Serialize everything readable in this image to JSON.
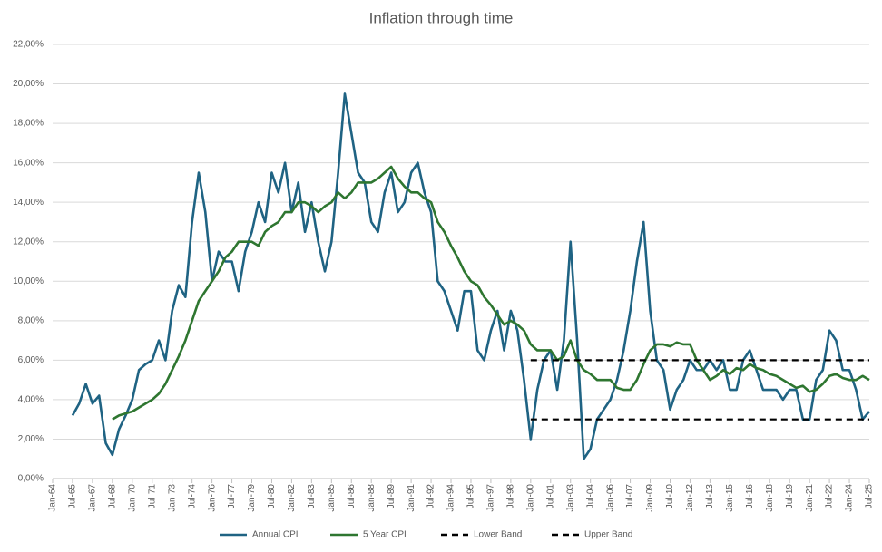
{
  "chart_data": {
    "type": "line",
    "title": "Inflation through time",
    "x": [
      "Jul-65",
      "Jan-66",
      "Jul-66",
      "Jan-67",
      "Jul-67",
      "Jan-68",
      "Jul-68",
      "Jan-69",
      "Jul-69",
      "Jan-70",
      "Jul-70",
      "Jan-71",
      "Jul-71",
      "Jan-72",
      "Jul-72",
      "Jan-73",
      "Jul-73",
      "Jan-74",
      "Jul-74",
      "Jan-75",
      "Jul-75",
      "Jan-76",
      "Jul-76",
      "Jan-77",
      "Jul-77",
      "Jan-78",
      "Jul-78",
      "Jan-79",
      "Jul-79",
      "Jan-80",
      "Jul-80",
      "Jan-81",
      "Jul-81",
      "Jan-82",
      "Jul-82",
      "Jan-83",
      "Jul-83",
      "Jan-84",
      "Jul-84",
      "Jan-85",
      "Jul-85",
      "Jan-86",
      "Jul-86",
      "Jan-87",
      "Jul-87",
      "Jan-88",
      "Jul-88",
      "Jan-89",
      "Jul-89",
      "Jan-90",
      "Jul-90",
      "Jan-91",
      "Jul-91",
      "Jan-92",
      "Jul-92",
      "Jan-93",
      "Jul-93",
      "Jan-94",
      "Jul-94",
      "Jan-95",
      "Jul-95",
      "Jan-96",
      "Jul-96",
      "Jan-97",
      "Jul-97",
      "Jan-98",
      "Jul-98",
      "Jan-99",
      "Jul-99",
      "Jan-00",
      "Jul-00",
      "Jan-01",
      "Jul-01",
      "Jan-02",
      "Jul-02",
      "Jan-03",
      "Jul-03",
      "Jan-04",
      "Jul-04",
      "Jan-05",
      "Jul-05",
      "Jan-06",
      "Jul-06",
      "Jan-07",
      "Jul-07",
      "Jan-08",
      "Jul-08",
      "Jan-09",
      "Jul-09",
      "Jan-10",
      "Jul-10",
      "Jan-11",
      "Jul-11",
      "Jan-12",
      "Jul-12",
      "Jan-13",
      "Jul-13",
      "Jan-14",
      "Jul-14",
      "Jan-15",
      "Jul-15",
      "Jan-16",
      "Jul-16",
      "Jan-17",
      "Jul-17",
      "Jan-18",
      "Jul-18",
      "Jan-19",
      "Jul-19",
      "Jan-20",
      "Jul-20",
      "Jan-21",
      "Jul-21",
      "Jan-22",
      "Jul-22",
      "Jan-23",
      "Jul-23",
      "Jan-24",
      "Jul-24",
      "Jan-25",
      "Jul-25"
    ],
    "series": [
      {
        "name": "Annual CPI",
        "color": "#1f6383",
        "dashed": false,
        "values": [
          3.2,
          3.8,
          4.8,
          3.8,
          4.2,
          1.8,
          1.2,
          2.5,
          3.2,
          4.0,
          5.5,
          5.8,
          6.0,
          7.0,
          6.0,
          8.5,
          9.8,
          9.2,
          13.0,
          15.5,
          13.5,
          10.0,
          11.5,
          11.0,
          11.0,
          9.5,
          11.5,
          12.5,
          14.0,
          13.0,
          15.5,
          14.5,
          16.0,
          13.5,
          15.0,
          12.5,
          14.0,
          12.0,
          10.5,
          12.0,
          15.5,
          19.5,
          17.5,
          15.5,
          15.0,
          13.0,
          12.5,
          14.5,
          15.5,
          13.5,
          14.0,
          15.5,
          16.0,
          14.5,
          13.5,
          10.0,
          9.5,
          8.5,
          7.5,
          9.5,
          9.5,
          6.5,
          6.0,
          7.5,
          8.5,
          6.5,
          8.5,
          7.5,
          5.0,
          2.0,
          4.5,
          6.0,
          6.5,
          4.5,
          7.0,
          12.0,
          7.0,
          1.0,
          1.5,
          3.0,
          3.5,
          4.0,
          5.0,
          6.5,
          8.5,
          11.0,
          13.0,
          8.5,
          6.0,
          5.5,
          3.5,
          4.5,
          5.0,
          6.0,
          5.5,
          5.5,
          6.0,
          5.5,
          6.0,
          4.5,
          4.5,
          6.0,
          6.5,
          5.5,
          4.5,
          4.5,
          4.5,
          4.0,
          4.5,
          4.5,
          3.0,
          3.0,
          5.0,
          5.5,
          7.5,
          7.0,
          5.5,
          5.5,
          4.5,
          3.0,
          3.4
        ]
      },
      {
        "name": "5 Year CPI",
        "color": "#2e7630",
        "dashed": false,
        "values": [
          null,
          null,
          null,
          null,
          null,
          null,
          3.0,
          3.2,
          3.3,
          3.4,
          3.6,
          3.8,
          4.0,
          4.3,
          4.8,
          5.5,
          6.2,
          7.0,
          8.0,
          9.0,
          9.5,
          10.0,
          10.5,
          11.2,
          11.5,
          12.0,
          12.0,
          12.0,
          11.8,
          12.5,
          12.8,
          13.0,
          13.5,
          13.5,
          14.0,
          14.0,
          13.8,
          13.5,
          13.8,
          14.0,
          14.5,
          14.2,
          14.5,
          15.0,
          15.0,
          15.0,
          15.2,
          15.5,
          15.8,
          15.2,
          14.8,
          14.5,
          14.5,
          14.2,
          14.0,
          13.0,
          12.5,
          11.8,
          11.2,
          10.5,
          10.0,
          9.8,
          9.2,
          8.8,
          8.3,
          7.8,
          8.0,
          7.8,
          7.5,
          6.8,
          6.5,
          6.5,
          6.5,
          6.0,
          6.2,
          7.0,
          6.0,
          5.5,
          5.3,
          5.0,
          5.0,
          5.0,
          4.6,
          4.5,
          4.5,
          5.0,
          5.8,
          6.5,
          6.8,
          6.8,
          6.7,
          6.9,
          6.8,
          6.8,
          6.0,
          5.5,
          5.0,
          5.2,
          5.5,
          5.3,
          5.6,
          5.5,
          5.8,
          5.6,
          5.5,
          5.3,
          5.2,
          5.0,
          4.8,
          4.6,
          4.7,
          4.4,
          4.5,
          4.8,
          5.2,
          5.3,
          5.1,
          5.0,
          5.0,
          5.2,
          5.0
        ]
      },
      {
        "name": "Lower Band",
        "color": "#000000",
        "dashed": true,
        "values": [
          null,
          null,
          null,
          null,
          null,
          null,
          null,
          null,
          null,
          null,
          null,
          null,
          null,
          null,
          null,
          null,
          null,
          null,
          null,
          null,
          null,
          null,
          null,
          null,
          null,
          null,
          null,
          null,
          null,
          null,
          null,
          null,
          null,
          null,
          null,
          null,
          null,
          null,
          null,
          null,
          null,
          null,
          null,
          null,
          null,
          null,
          null,
          null,
          null,
          null,
          null,
          null,
          null,
          null,
          null,
          null,
          null,
          null,
          null,
          null,
          null,
          null,
          null,
          null,
          null,
          null,
          null,
          null,
          null,
          3,
          3,
          3,
          3,
          3,
          3,
          3,
          3,
          3,
          3,
          3,
          3,
          3,
          3,
          3,
          3,
          3,
          3,
          3,
          3,
          3,
          3,
          3,
          3,
          3,
          3,
          3,
          3,
          3,
          3,
          3,
          3,
          3,
          3,
          3,
          3,
          3,
          3,
          3,
          3,
          3,
          3,
          3,
          3,
          3,
          3,
          3,
          3,
          3,
          3,
          3,
          3
        ]
      },
      {
        "name": "Upper Band",
        "color": "#000000",
        "dashed": true,
        "values": [
          null,
          null,
          null,
          null,
          null,
          null,
          null,
          null,
          null,
          null,
          null,
          null,
          null,
          null,
          null,
          null,
          null,
          null,
          null,
          null,
          null,
          null,
          null,
          null,
          null,
          null,
          null,
          null,
          null,
          null,
          null,
          null,
          null,
          null,
          null,
          null,
          null,
          null,
          null,
          null,
          null,
          null,
          null,
          null,
          null,
          null,
          null,
          null,
          null,
          null,
          null,
          null,
          null,
          null,
          null,
          null,
          null,
          null,
          null,
          null,
          null,
          null,
          null,
          null,
          null,
          null,
          null,
          null,
          null,
          6,
          6,
          6,
          6,
          6,
          6,
          6,
          6,
          6,
          6,
          6,
          6,
          6,
          6,
          6,
          6,
          6,
          6,
          6,
          6,
          6,
          6,
          6,
          6,
          6,
          6,
          6,
          6,
          6,
          6,
          6,
          6,
          6,
          6,
          6,
          6,
          6,
          6,
          6,
          6,
          6,
          6,
          6,
          6,
          6,
          6,
          6,
          6,
          6,
          6,
          6,
          6
        ]
      }
    ],
    "xticks": [
      "Jan-64",
      "Jul-65",
      "Jan-67",
      "Jul-68",
      "Jan-70",
      "Jul-71",
      "Jan-73",
      "Jul-74",
      "Jan-76",
      "Jul-77",
      "Jan-79",
      "Jul-80",
      "Jan-82",
      "Jul-83",
      "Jan-85",
      "Jul-86",
      "Jan-88",
      "Jul-89",
      "Jan-91",
      "Jul-92",
      "Jan-94",
      "Jul-95",
      "Jan-97",
      "Jul-98",
      "Jan-00",
      "Jul-01",
      "Jan-03",
      "Jul-04",
      "Jan-06",
      "Jul-07",
      "Jan-09",
      "Jul-10",
      "Jan-12",
      "Jul-13",
      "Jan-15",
      "Jul-16",
      "Jan-18",
      "Jul-19",
      "Jan-21",
      "Jul-22",
      "Jan-24",
      "Jul-25"
    ],
    "ylim": [
      0,
      22
    ],
    "yticks": [
      {
        "value": 0,
        "label": "0,00%"
      },
      {
        "value": 2,
        "label": "2,00%"
      },
      {
        "value": 4,
        "label": "4,00%"
      },
      {
        "value": 6,
        "label": "6,00%"
      },
      {
        "value": 8,
        "label": "8,00%"
      },
      {
        "value": 10,
        "label": "10,00%"
      },
      {
        "value": 12,
        "label": "12,00%"
      },
      {
        "value": 14,
        "label": "14,00%"
      },
      {
        "value": 16,
        "label": "16,00%"
      },
      {
        "value": 18,
        "label": "18,00%"
      },
      {
        "value": 20,
        "label": "20,00%"
      },
      {
        "value": 22,
        "label": "22,00%"
      }
    ],
    "grid": true,
    "legend": "bottom"
  }
}
